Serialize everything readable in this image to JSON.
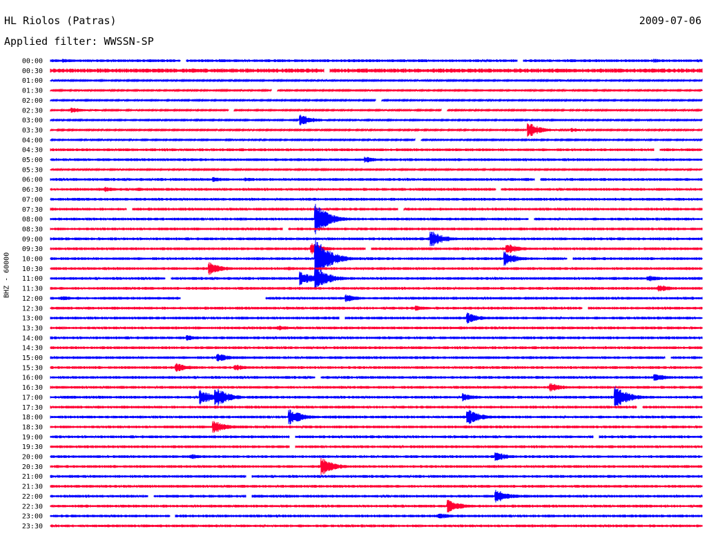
{
  "header": {
    "station": "HL Riolos (Patras)",
    "date": "2009-07-06",
    "filter": "Applied filter: WWSSN-SP"
  },
  "chart_data": {
    "type": "line",
    "title": "HL Riolos (Patras)",
    "ylabel": "BHZ - 60000",
    "xlabel": "",
    "grid": false,
    "colors": {
      "even_rows": "#0000ff",
      "odd_rows": "#ff0033"
    },
    "rows": [
      "00:00",
      "00:30",
      "01:00",
      "01:30",
      "02:00",
      "02:30",
      "03:00",
      "03:30",
      "04:00",
      "04:30",
      "05:00",
      "05:30",
      "06:00",
      "06:30",
      "07:00",
      "07:30",
      "08:00",
      "08:30",
      "09:00",
      "09:30",
      "10:00",
      "10:30",
      "11:00",
      "11:30",
      "12:00",
      "12:30",
      "13:00",
      "13:30",
      "14:00",
      "14:30",
      "15:00",
      "15:30",
      "16:00",
      "16:30",
      "17:00",
      "17:30",
      "18:00",
      "18:30",
      "19:00",
      "19:30",
      "20:00",
      "20:30",
      "21:00",
      "21:30",
      "22:00",
      "22:30",
      "23:00",
      "23:30"
    ],
    "row_minutes": 30,
    "noise_level": [
      2,
      3,
      1,
      1,
      1,
      1,
      1,
      1,
      1,
      2,
      2,
      1,
      2,
      2,
      2,
      2,
      2,
      2,
      2,
      2,
      2,
      2,
      2,
      2,
      2,
      2,
      2,
      2,
      2,
      2,
      2,
      2,
      2,
      2,
      2,
      2,
      2,
      2,
      2,
      2,
      2,
      2,
      2,
      2,
      2,
      2,
      2,
      2
    ],
    "events": [
      {
        "row": 0,
        "minute": 0.6,
        "amplitude": 3
      },
      {
        "row": 0,
        "minute": 8.5,
        "amplitude": 2
      },
      {
        "row": 0,
        "minute": 27.8,
        "amplitude": 3
      },
      {
        "row": 1,
        "minute": 0.4,
        "amplitude": 3
      },
      {
        "row": 2,
        "minute": 23.5,
        "amplitude": 2
      },
      {
        "row": 5,
        "minute": 1.0,
        "amplitude": 4
      },
      {
        "row": 5,
        "minute": 2.0,
        "amplitude": 2
      },
      {
        "row": 6,
        "minute": 11.5,
        "amplitude": 9
      },
      {
        "row": 7,
        "minute": 22.0,
        "amplitude": 11
      },
      {
        "row": 7,
        "minute": 24.0,
        "amplitude": 3
      },
      {
        "row": 10,
        "minute": 14.5,
        "amplitude": 5
      },
      {
        "row": 12,
        "minute": 7.5,
        "amplitude": 4
      },
      {
        "row": 12,
        "minute": 9.0,
        "amplitude": 3
      },
      {
        "row": 13,
        "minute": 2.5,
        "amplitude": 4
      },
      {
        "row": 13,
        "minute": 4.0,
        "amplitude": 3
      },
      {
        "row": 16,
        "minute": 12.2,
        "amplitude": 24
      },
      {
        "row": 18,
        "minute": 17.5,
        "amplitude": 13
      },
      {
        "row": 19,
        "minute": 12.0,
        "amplitude": 9
      },
      {
        "row": 19,
        "minute": 21.0,
        "amplitude": 8
      },
      {
        "row": 20,
        "minute": 12.2,
        "amplitude": 34
      },
      {
        "row": 20,
        "minute": 20.9,
        "amplitude": 11
      },
      {
        "row": 21,
        "minute": 7.3,
        "amplitude": 10
      },
      {
        "row": 21,
        "minute": 11.0,
        "amplitude": 3
      },
      {
        "row": 22,
        "minute": 11.5,
        "amplitude": 11
      },
      {
        "row": 22,
        "minute": 12.2,
        "amplitude": 18
      },
      {
        "row": 22,
        "minute": 27.5,
        "amplitude": 5
      },
      {
        "row": 23,
        "minute": 28.0,
        "amplitude": 6
      },
      {
        "row": 24,
        "minute": 0.5,
        "amplitude": 4
      },
      {
        "row": 24,
        "minute": 13.6,
        "amplitude": 6
      },
      {
        "row": 25,
        "minute": 16.8,
        "amplitude": 4
      },
      {
        "row": 26,
        "minute": 19.2,
        "amplitude": 8
      },
      {
        "row": 27,
        "minute": 10.5,
        "amplitude": 4
      },
      {
        "row": 28,
        "minute": 6.3,
        "amplitude": 4
      },
      {
        "row": 30,
        "minute": 7.7,
        "amplitude": 7
      },
      {
        "row": 31,
        "minute": 5.8,
        "amplitude": 7
      },
      {
        "row": 31,
        "minute": 8.5,
        "amplitude": 5
      },
      {
        "row": 32,
        "minute": 27.8,
        "amplitude": 6
      },
      {
        "row": 33,
        "minute": 23.0,
        "amplitude": 7
      },
      {
        "row": 34,
        "minute": 6.9,
        "amplitude": 11
      },
      {
        "row": 34,
        "minute": 7.6,
        "amplitude": 15
      },
      {
        "row": 34,
        "minute": 19.0,
        "amplitude": 6
      },
      {
        "row": 34,
        "minute": 26.0,
        "amplitude": 17
      },
      {
        "row": 36,
        "minute": 11.0,
        "amplitude": 12
      },
      {
        "row": 36,
        "minute": 19.2,
        "amplitude": 12
      },
      {
        "row": 37,
        "minute": 7.5,
        "amplitude": 10
      },
      {
        "row": 40,
        "minute": 6.5,
        "amplitude": 4
      },
      {
        "row": 40,
        "minute": 20.5,
        "amplitude": 7
      },
      {
        "row": 41,
        "minute": 12.5,
        "amplitude": 13
      },
      {
        "row": 44,
        "minute": 20.5,
        "amplitude": 11
      },
      {
        "row": 45,
        "minute": 18.3,
        "amplitude": 10
      },
      {
        "row": 46,
        "minute": 17.9,
        "amplitude": 5
      }
    ],
    "gaps": [
      {
        "row": 0,
        "minute": 6.0
      },
      {
        "row": 0,
        "minute": 21.5
      },
      {
        "row": 1,
        "minute": 12.6
      },
      {
        "row": 3,
        "minute": 10.2
      },
      {
        "row": 4,
        "minute": 15.0
      },
      {
        "row": 5,
        "minute": 8.2
      },
      {
        "row": 5,
        "minute": 18.0
      },
      {
        "row": 8,
        "minute": 16.8
      },
      {
        "row": 9,
        "minute": 27.8
      },
      {
        "row": 12,
        "minute": 22.3
      },
      {
        "row": 13,
        "minute": 20.5
      },
      {
        "row": 15,
        "minute": 3.5
      },
      {
        "row": 15,
        "minute": 16.0
      },
      {
        "row": 16,
        "minute": 22.0
      },
      {
        "row": 17,
        "minute": 10.7
      },
      {
        "row": 19,
        "minute": 14.5
      },
      {
        "row": 20,
        "minute": 23.8
      },
      {
        "row": 22,
        "minute": 5.3
      },
      {
        "row": 24,
        "minute": 6.0,
        "length": 3.9
      },
      {
        "row": 25,
        "minute": 24.5
      },
      {
        "row": 26,
        "minute": 13.3
      },
      {
        "row": 30,
        "minute": 28.3
      },
      {
        "row": 32,
        "minute": 12.2
      },
      {
        "row": 35,
        "minute": 27.0
      },
      {
        "row": 38,
        "minute": 11.0
      },
      {
        "row": 38,
        "minute": 25.0
      },
      {
        "row": 39,
        "minute": 11.0
      },
      {
        "row": 42,
        "minute": 9.0
      },
      {
        "row": 44,
        "minute": 4.5
      },
      {
        "row": 44,
        "minute": 9.0
      },
      {
        "row": 46,
        "minute": 5.5
      }
    ]
  }
}
